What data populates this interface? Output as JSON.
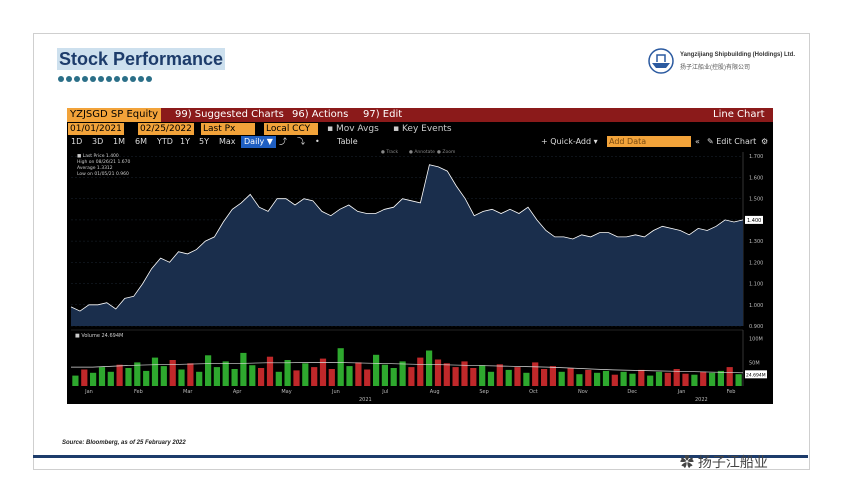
{
  "slide": {
    "title": "Stock Performance",
    "logo_en": "Yangzijiang Shipbuilding (Holdings) Ltd.",
    "logo_cn": "扬子江船业(控股)有限公司",
    "source": "Source:  Bloomberg, as of 25 February 2022",
    "watermark": "扬子江船业"
  },
  "terminal": {
    "ticker": "YZJSGD SP Equity",
    "suggested": "99) Suggested Charts",
    "actions": "96) Actions",
    "edit": "97) Edit",
    "chart_kind": "Line Chart",
    "date_from": "01/01/2021",
    "date_to": "02/25/2022",
    "field": "Last Px",
    "ccy": "Local CCY",
    "mov_avgs": "Mov Avgs",
    "key_events": "Key Events",
    "periods": [
      "1D",
      "3D",
      "1M",
      "6M",
      "YTD",
      "1Y",
      "5Y",
      "Max"
    ],
    "freq": "Daily ▼",
    "table": "Table",
    "quick_add": "+ Quick-Add ▾",
    "add_data": "Add Data",
    "edit_chart": "✎ Edit Chart",
    "toolbar_mid": [
      "● Track",
      "● Annotate",
      "● Zoom"
    ]
  },
  "legend": {
    "lines": [
      "Last Price   1.400",
      "High on 08/26/21   1.670",
      "Average   1.3312",
      "Low on 01/05/21   0.960"
    ],
    "volume": "Volume  24.694M",
    "last_price_tag": "1.400",
    "volume_tag": "24.694M"
  },
  "chart_data": {
    "type": "area",
    "title": "",
    "price_axis": {
      "ylim": [
        0.9,
        1.72
      ],
      "ticks": [
        "1.700",
        "1.600",
        "1.500",
        "1.400",
        "1.300",
        "1.200",
        "1.100",
        "1.000",
        "0.900"
      ]
    },
    "volume_axis": {
      "ylim": [
        0,
        110
      ],
      "ticks": [
        "100M",
        "50M"
      ]
    },
    "months": [
      "Jan",
      "Feb",
      "Mar",
      "Apr",
      "May",
      "Jun",
      "Jul",
      "Aug",
      "Sep",
      "Oct",
      "Nov",
      "Dec",
      "Jan",
      "Feb"
    ],
    "years": [
      "2021",
      "2022"
    ],
    "price_series": [
      0.99,
      0.97,
      1.0,
      1.0,
      1.01,
      0.98,
      1.03,
      1.04,
      1.1,
      1.17,
      1.22,
      1.2,
      1.25,
      1.24,
      1.26,
      1.3,
      1.32,
      1.39,
      1.45,
      1.48,
      1.52,
      1.46,
      1.44,
      1.5,
      1.5,
      1.47,
      1.5,
      1.49,
      1.44,
      1.42,
      1.45,
      1.47,
      1.44,
      1.43,
      1.43,
      1.45,
      1.46,
      1.5,
      1.49,
      1.48,
      1.66,
      1.65,
      1.63,
      1.56,
      1.5,
      1.42,
      1.44,
      1.45,
      1.43,
      1.45,
      1.43,
      1.46,
      1.4,
      1.35,
      1.32,
      1.32,
      1.31,
      1.33,
      1.32,
      1.34,
      1.34,
      1.32,
      1.32,
      1.33,
      1.32,
      1.35,
      1.37,
      1.36,
      1.35,
      1.33,
      1.36,
      1.35,
      1.37,
      1.4,
      1.39,
      1.4
    ],
    "volume_series": [
      22,
      35,
      28,
      40,
      30,
      45,
      38,
      50,
      32,
      60,
      42,
      55,
      35,
      48,
      30,
      65,
      40,
      52,
      36,
      70,
      44,
      38,
      62,
      30,
      55,
      33,
      48,
      40,
      58,
      36,
      80,
      42,
      50,
      35,
      66,
      45,
      38,
      52,
      40,
      60,
      75,
      56,
      48,
      40,
      52,
      38,
      44,
      30,
      46,
      34,
      40,
      28,
      50,
      36,
      42,
      30,
      38,
      25,
      34,
      28,
      32,
      24,
      30,
      26,
      34,
      22,
      30,
      28,
      36,
      26,
      24,
      30,
      28,
      32,
      40,
      25
    ],
    "volume_avg": [
      40,
      40,
      42,
      44,
      45,
      46,
      47,
      48,
      48,
      49,
      49,
      50,
      50,
      49,
      48,
      47,
      46,
      45,
      44,
      43,
      42,
      41,
      40,
      38,
      36,
      34,
      33,
      32,
      31,
      30,
      29,
      28
    ]
  }
}
